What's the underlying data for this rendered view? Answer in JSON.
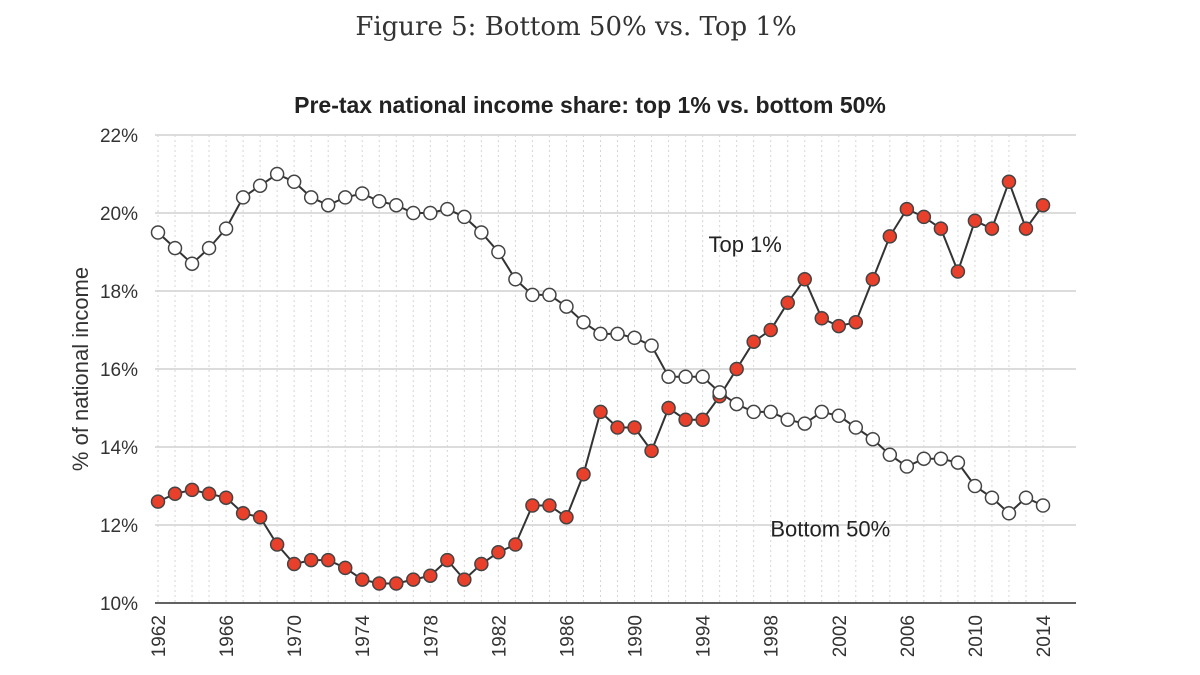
{
  "figure_caption": "Figure 5: Bottom 50% vs. Top 1%",
  "chart_data": {
    "type": "line",
    "title": "Pre-tax national income share: top 1% vs. bottom 50%",
    "xlabel": "",
    "ylabel": "% of national income",
    "xlim": [
      1962,
      2014
    ],
    "ylim": [
      10,
      22
    ],
    "x_ticks": [
      "1962",
      "1966",
      "1970",
      "1974",
      "1978",
      "1982",
      "1986",
      "1990",
      "1994",
      "1998",
      "2002",
      "2006",
      "2010",
      "2014"
    ],
    "y_ticks": [
      "10%",
      "12%",
      "14%",
      "16%",
      "18%",
      "20%",
      "22%"
    ],
    "grid": true,
    "x": [
      1962,
      1963,
      1964,
      1965,
      1966,
      1967,
      1968,
      1969,
      1970,
      1971,
      1972,
      1973,
      1974,
      1975,
      1976,
      1977,
      1978,
      1979,
      1980,
      1981,
      1982,
      1983,
      1984,
      1985,
      1986,
      1987,
      1988,
      1989,
      1990,
      1991,
      1992,
      1993,
      1994,
      1995,
      1996,
      1997,
      1998,
      1999,
      2000,
      2001,
      2002,
      2003,
      2004,
      2005,
      2006,
      2007,
      2008,
      2009,
      2010,
      2011,
      2012,
      2013,
      2014
    ],
    "series": [
      {
        "name": "Top 1%",
        "color": "#e8402a",
        "marker": "filled-circle",
        "values": [
          12.6,
          12.8,
          12.9,
          12.8,
          12.7,
          12.3,
          12.2,
          11.5,
          11.0,
          11.1,
          11.1,
          10.9,
          10.6,
          10.5,
          10.5,
          10.6,
          10.7,
          11.1,
          10.6,
          11.0,
          11.3,
          11.5,
          12.5,
          12.5,
          12.2,
          13.3,
          14.9,
          14.5,
          14.5,
          13.9,
          15.0,
          14.7,
          14.7,
          15.3,
          16.0,
          16.7,
          17.0,
          17.7,
          18.3,
          17.3,
          17.1,
          17.2,
          18.3,
          19.4,
          20.1,
          19.9,
          19.6,
          18.5,
          19.8,
          19.6,
          20.8,
          19.6,
          20.2
        ]
      },
      {
        "name": "Bottom 50%",
        "color": "#ffffff",
        "marker": "open-circle",
        "values": [
          19.5,
          19.1,
          18.7,
          19.1,
          19.6,
          20.4,
          20.7,
          21.0,
          20.8,
          20.4,
          20.2,
          20.4,
          20.5,
          20.3,
          20.2,
          20.0,
          20.0,
          20.1,
          19.9,
          19.5,
          19.0,
          18.3,
          17.9,
          17.9,
          17.6,
          17.2,
          16.9,
          16.9,
          16.8,
          16.6,
          15.8,
          15.8,
          15.8,
          15.4,
          15.1,
          14.9,
          14.9,
          14.7,
          14.6,
          14.9,
          14.8,
          14.5,
          14.2,
          13.8,
          13.5,
          13.7,
          13.7,
          13.6,
          13.0,
          12.7,
          12.3,
          12.7,
          12.5
        ]
      }
    ],
    "annotations": [
      {
        "text": "Top 1%",
        "x": 1996.5,
        "y": 19.0
      },
      {
        "text": "Bottom 50%",
        "x": 2001.5,
        "y": 11.7
      }
    ]
  }
}
